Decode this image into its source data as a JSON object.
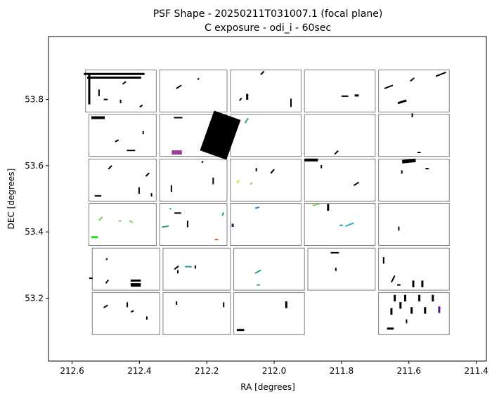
{
  "chart_data": {
    "type": "scatter",
    "title": "PSF Shape - 20250211T031007.1 (focal plane)",
    "subtitle": "C exposure - odi_i - 60sec",
    "xlabel": "RA [degrees]",
    "ylabel": "DEC [degrees]",
    "xlim": [
      212.67,
      211.37
    ],
    "ylim": [
      53.01,
      53.99
    ],
    "x_inverted": true,
    "grid": false,
    "xticks": [
      212.6,
      212.4,
      212.2,
      212.0,
      211.8,
      211.6,
      211.4
    ],
    "xtick_labels": [
      "212.6",
      "212.4",
      "212.2",
      "212.0",
      "211.8",
      "211.6",
      "211.4"
    ],
    "yticks": [
      53.2,
      53.4,
      53.6,
      53.8
    ],
    "ytick_labels": [
      "53.2",
      "53.4",
      "53.6",
      "53.8"
    ],
    "cells": [
      {
        "ra": [
          212.56,
          212.35
        ],
        "dec": [
          53.762,
          53.889
        ]
      },
      {
        "ra": [
          212.34,
          212.14
        ],
        "dec": [
          53.762,
          53.889
        ]
      },
      {
        "ra": [
          212.13,
          211.92
        ],
        "dec": [
          53.762,
          53.889
        ]
      },
      {
        "ra": [
          211.91,
          211.7
        ],
        "dec": [
          53.762,
          53.889
        ]
      },
      {
        "ra": [
          211.69,
          211.48
        ],
        "dec": [
          53.762,
          53.889
        ]
      },
      {
        "ra": [
          212.55,
          212.35
        ],
        "dec": [
          53.628,
          53.755
        ]
      },
      {
        "ra": [
          212.34,
          212.14
        ],
        "dec": [
          53.628,
          53.755
        ]
      },
      {
        "ra": [
          212.13,
          211.92
        ],
        "dec": [
          53.628,
          53.755
        ]
      },
      {
        "ra": [
          211.91,
          211.7
        ],
        "dec": [
          53.628,
          53.755
        ]
      },
      {
        "ra": [
          211.69,
          211.48
        ],
        "dec": [
          53.628,
          53.755
        ]
      },
      {
        "ra": [
          212.55,
          212.35
        ],
        "dec": [
          53.493,
          53.62
        ]
      },
      {
        "ra": [
          212.34,
          212.14
        ],
        "dec": [
          53.493,
          53.62
        ]
      },
      {
        "ra": [
          212.13,
          211.92
        ],
        "dec": [
          53.493,
          53.62
        ]
      },
      {
        "ra": [
          211.91,
          211.7
        ],
        "dec": [
          53.493,
          53.62
        ]
      },
      {
        "ra": [
          211.69,
          211.48
        ],
        "dec": [
          53.493,
          53.62
        ]
      },
      {
        "ra": [
          212.55,
          212.35
        ],
        "dec": [
          53.359,
          53.486
        ]
      },
      {
        "ra": [
          212.34,
          212.14
        ],
        "dec": [
          53.359,
          53.486
        ]
      },
      {
        "ra": [
          212.13,
          211.92
        ],
        "dec": [
          53.359,
          53.486
        ]
      },
      {
        "ra": [
          211.91,
          211.7
        ],
        "dec": [
          53.359,
          53.486
        ]
      },
      {
        "ra": [
          211.69,
          211.48
        ],
        "dec": [
          53.359,
          53.486
        ]
      },
      {
        "ra": [
          212.54,
          212.34
        ],
        "dec": [
          53.224,
          53.351
        ]
      },
      {
        "ra": [
          212.33,
          212.13
        ],
        "dec": [
          53.224,
          53.351
        ]
      },
      {
        "ra": [
          212.12,
          211.91
        ],
        "dec": [
          53.224,
          53.351
        ]
      },
      {
        "ra": [
          211.9,
          211.7
        ],
        "dec": [
          53.224,
          53.351
        ]
      },
      {
        "ra": [
          211.69,
          211.48
        ],
        "dec": [
          53.224,
          53.351
        ]
      },
      {
        "ra": [
          212.54,
          212.34
        ],
        "dec": [
          53.09,
          53.217
        ]
      },
      {
        "ra": [
          212.33,
          212.13
        ],
        "dec": [
          53.09,
          53.217
        ]
      },
      {
        "ra": [
          212.12,
          211.91
        ],
        "dec": [
          53.09,
          53.217
        ]
      },
      {
        "ra": [
          211.69,
          211.48
        ],
        "dec": [
          53.09,
          53.217
        ]
      }
    ],
    "psf_segments": [
      {
        "ra": 212.475,
        "dec": 53.877,
        "dx": 0.18,
        "dy": 0,
        "w": 3,
        "color": "#000000"
      },
      {
        "ra": 212.475,
        "dec": 53.866,
        "dx": 0.16,
        "dy": 0,
        "w": 3,
        "color": "#000000"
      },
      {
        "ra": 212.549,
        "dec": 53.83,
        "dx": 0,
        "dy": 0.09,
        "w": 3,
        "color": "#000000"
      },
      {
        "ra": 212.52,
        "dec": 53.82,
        "dx": 0,
        "dy": 0.02,
        "w": 2,
        "color": "#000000"
      },
      {
        "ra": 212.5,
        "dec": 53.8,
        "dx": 0.012,
        "dy": 0,
        "w": 2,
        "color": "#000000"
      },
      {
        "ra": 212.445,
        "dec": 53.85,
        "dx": 0.01,
        "dy": 0.008,
        "w": 2,
        "color": "#000000"
      },
      {
        "ra": 212.395,
        "dec": 53.78,
        "dx": 0.008,
        "dy": 0.006,
        "w": 2,
        "color": "#000000"
      },
      {
        "ra": 212.456,
        "dec": 53.794,
        "dx": 0,
        "dy": 0.01,
        "w": 2,
        "color": "#000000"
      },
      {
        "ra": 212.283,
        "dec": 53.838,
        "dx": 0.015,
        "dy": 0.01,
        "w": 2,
        "color": "#000000"
      },
      {
        "ra": 212.225,
        "dec": 53.862,
        "dx": 0.004,
        "dy": 0.004,
        "w": 2,
        "color": "#000000"
      },
      {
        "ra": 212.08,
        "dec": 53.808,
        "dx": 0,
        "dy": 0.018,
        "w": 3,
        "color": "#000000"
      },
      {
        "ra": 212.035,
        "dec": 53.88,
        "dx": 0.01,
        "dy": 0.01,
        "w": 2,
        "color": "#000000"
      },
      {
        "ra": 211.95,
        "dec": 53.79,
        "dx": 0,
        "dy": 0.025,
        "w": 2,
        "color": "#000000"
      },
      {
        "ra": 212.1,
        "dec": 53.8,
        "dx": 0.006,
        "dy": 0.008,
        "w": 2,
        "color": "#000000"
      },
      {
        "ra": 211.79,
        "dec": 53.81,
        "dx": 0.02,
        "dy": 0,
        "w": 2,
        "color": "#000000"
      },
      {
        "ra": 211.755,
        "dec": 53.812,
        "dx": 0.012,
        "dy": 0,
        "w": 3,
        "color": "#000000"
      },
      {
        "ra": 211.62,
        "dec": 53.793,
        "dx": 0.025,
        "dy": 0.008,
        "w": 3,
        "color": "#000000"
      },
      {
        "ra": 211.505,
        "dec": 53.876,
        "dx": 0.03,
        "dy": 0.012,
        "w": 2,
        "color": "#000000"
      },
      {
        "ra": 211.66,
        "dec": 53.838,
        "dx": 0.025,
        "dy": 0.01,
        "w": 2,
        "color": "#000000"
      },
      {
        "ra": 211.59,
        "dec": 53.86,
        "dx": 0.012,
        "dy": 0.01,
        "w": 2,
        "color": "#000000"
      },
      {
        "ra": 212.523,
        "dec": 53.745,
        "dx": 0.04,
        "dy": 0,
        "w": 4,
        "color": "#000000"
      },
      {
        "ra": 212.467,
        "dec": 53.675,
        "dx": 0.01,
        "dy": 0.005,
        "w": 2,
        "color": "#000000"
      },
      {
        "ra": 212.425,
        "dec": 53.646,
        "dx": 0.025,
        "dy": 0,
        "w": 2,
        "color": "#000000"
      },
      {
        "ra": 212.389,
        "dec": 53.7,
        "dx": 0,
        "dy": 0.01,
        "w": 2,
        "color": "#000000"
      },
      {
        "ra": 212.285,
        "dec": 53.745,
        "dx": 0.025,
        "dy": 0,
        "w": 2,
        "color": "#000000"
      },
      {
        "ra": 212.289,
        "dec": 53.64,
        "dx": 0.03,
        "dy": 0,
        "w": 6,
        "color": "#9a3d9a"
      },
      {
        "ra": 212.16,
        "dec": 53.692,
        "dx": 0.042,
        "dy": 0.12,
        "w": 40,
        "color": "#000000"
      },
      {
        "ra": 212.082,
        "dec": 53.736,
        "dx": 0.01,
        "dy": 0.015,
        "w": 2,
        "color": "#2aaa80"
      },
      {
        "ra": 211.89,
        "dec": 53.617,
        "dx": 0.04,
        "dy": 0,
        "w": 4,
        "color": "#000000"
      },
      {
        "ra": 211.815,
        "dec": 53.64,
        "dx": 0.01,
        "dy": 0.01,
        "w": 2,
        "color": "#000000"
      },
      {
        "ra": 211.6,
        "dec": 53.614,
        "dx": 0.04,
        "dy": 0.004,
        "w": 5,
        "color": "#000000"
      },
      {
        "ra": 211.59,
        "dec": 53.752,
        "dx": 0,
        "dy": 0.012,
        "w": 2,
        "color": "#000000"
      },
      {
        "ra": 211.57,
        "dec": 53.64,
        "dx": 0.01,
        "dy": 0,
        "w": 2,
        "color": "#000000"
      },
      {
        "ra": 212.523,
        "dec": 53.509,
        "dx": 0.02,
        "dy": 0,
        "w": 2,
        "color": "#000000"
      },
      {
        "ra": 212.487,
        "dec": 53.595,
        "dx": 0.01,
        "dy": 0.01,
        "w": 2,
        "color": "#000000"
      },
      {
        "ra": 212.376,
        "dec": 53.573,
        "dx": 0.01,
        "dy": 0.01,
        "w": 2,
        "color": "#000000"
      },
      {
        "ra": 212.401,
        "dec": 53.525,
        "dx": 0,
        "dy": 0.02,
        "w": 2,
        "color": "#000000"
      },
      {
        "ra": 212.364,
        "dec": 53.512,
        "dx": 0,
        "dy": 0.01,
        "w": 2,
        "color": "#000000"
      },
      {
        "ra": 212.305,
        "dec": 53.531,
        "dx": 0,
        "dy": 0.02,
        "w": 2,
        "color": "#000000"
      },
      {
        "ra": 212.181,
        "dec": 53.554,
        "dx": 0,
        "dy": 0.02,
        "w": 2,
        "color": "#000000"
      },
      {
        "ra": 212.213,
        "dec": 53.611,
        "dx": 0.004,
        "dy": 0.004,
        "w": 2,
        "color": "#000000"
      },
      {
        "ra": 212.107,
        "dec": 53.552,
        "dx": 0.005,
        "dy": 0.01,
        "w": 2,
        "color": "#c8e020"
      },
      {
        "ra": 212.068,
        "dec": 53.546,
        "dx": 0.003,
        "dy": 0.006,
        "w": 2,
        "color": "#7ad151"
      },
      {
        "ra": 212.005,
        "dec": 53.583,
        "dx": 0.01,
        "dy": 0.012,
        "w": 2,
        "color": "#000000"
      },
      {
        "ra": 212.053,
        "dec": 53.588,
        "dx": 0,
        "dy": 0.01,
        "w": 2,
        "color": "#000000"
      },
      {
        "ra": 211.86,
        "dec": 53.597,
        "dx": 0,
        "dy": 0.01,
        "w": 2,
        "color": "#000000"
      },
      {
        "ra": 211.756,
        "dec": 53.545,
        "dx": 0.015,
        "dy": 0.01,
        "w": 2,
        "color": "#000000"
      },
      {
        "ra": 211.621,
        "dec": 53.581,
        "dx": 0,
        "dy": 0.01,
        "w": 2,
        "color": "#000000"
      },
      {
        "ra": 211.546,
        "dec": 53.591,
        "dx": 0.01,
        "dy": 0,
        "w": 2,
        "color": "#000000"
      },
      {
        "ra": 212.515,
        "dec": 53.44,
        "dx": 0.01,
        "dy": 0.01,
        "w": 2,
        "color": "#7ad151"
      },
      {
        "ra": 212.458,
        "dec": 53.433,
        "dx": 0.008,
        "dy": 0,
        "w": 2,
        "color": "#7ad151"
      },
      {
        "ra": 212.425,
        "dec": 53.431,
        "dx": 0.01,
        "dy": -0.005,
        "w": 2,
        "color": "#7ad151"
      },
      {
        "ra": 212.533,
        "dec": 53.384,
        "dx": 0.02,
        "dy": 0,
        "w": 3,
        "color": "#22dd22"
      },
      {
        "ra": 212.286,
        "dec": 53.457,
        "dx": 0.02,
        "dy": 0,
        "w": 2,
        "color": "#000000"
      },
      {
        "ra": 212.323,
        "dec": 53.416,
        "dx": 0.02,
        "dy": 0.004,
        "w": 2,
        "color": "#2a9a8a"
      },
      {
        "ra": 212.308,
        "dec": 53.47,
        "dx": 0.004,
        "dy": 0.004,
        "w": 2,
        "color": "#2ab0a0"
      },
      {
        "ra": 212.257,
        "dec": 53.424,
        "dx": 0,
        "dy": 0.02,
        "w": 2,
        "color": "#000000"
      },
      {
        "ra": 212.152,
        "dec": 53.454,
        "dx": 0.004,
        "dy": 0.01,
        "w": 2,
        "color": "#1f9a8a"
      },
      {
        "ra": 212.171,
        "dec": 53.377,
        "dx": 0.01,
        "dy": 0,
        "w": 2,
        "color": "#d46a3a"
      },
      {
        "ra": 212.123,
        "dec": 53.42,
        "dx": 0,
        "dy": 0.01,
        "w": 3,
        "color": "#3b1c6b"
      },
      {
        "ra": 212.05,
        "dec": 53.473,
        "dx": 0.012,
        "dy": 0.003,
        "w": 2,
        "color": "#2a8aa0"
      },
      {
        "ra": 211.876,
        "dec": 53.482,
        "dx": 0.02,
        "dy": 0.004,
        "w": 2,
        "color": "#7ad151"
      },
      {
        "ra": 211.84,
        "dec": 53.474,
        "dx": 0,
        "dy": 0.02,
        "w": 3,
        "color": "#000000"
      },
      {
        "ra": 211.776,
        "dec": 53.422,
        "dx": 0.025,
        "dy": 0.01,
        "w": 2,
        "color": "#2ab0c0"
      },
      {
        "ra": 211.801,
        "dec": 53.42,
        "dx": 0.01,
        "dy": 0,
        "w": 2,
        "color": "#2a9aa0"
      },
      {
        "ra": 211.63,
        "dec": 53.41,
        "dx": 0,
        "dy": 0.012,
        "w": 2,
        "color": "#000000"
      },
      {
        "ra": 212.544,
        "dec": 53.26,
        "dx": 0.01,
        "dy": 0,
        "w": 2,
        "color": "#000000"
      },
      {
        "ra": 212.497,
        "dec": 53.318,
        "dx": 0.004,
        "dy": 0.004,
        "w": 2,
        "color": "#000000"
      },
      {
        "ra": 212.496,
        "dec": 53.25,
        "dx": 0.008,
        "dy": 0.01,
        "w": 2,
        "color": "#000000"
      },
      {
        "ra": 212.411,
        "dec": 53.253,
        "dx": 0.03,
        "dy": 0,
        "w": 3,
        "color": "#000000"
      },
      {
        "ra": 212.411,
        "dec": 53.24,
        "dx": 0.03,
        "dy": 0,
        "w": 5,
        "color": "#000000"
      },
      {
        "ra": 212.29,
        "dec": 53.292,
        "dx": 0.012,
        "dy": 0.01,
        "w": 2,
        "color": "#000000"
      },
      {
        "ra": 212.286,
        "dec": 53.28,
        "dx": 0,
        "dy": 0.01,
        "w": 2,
        "color": "#000000"
      },
      {
        "ra": 212.255,
        "dec": 53.295,
        "dx": 0.02,
        "dy": 0,
        "w": 2,
        "color": "#2a9aa0"
      },
      {
        "ra": 212.234,
        "dec": 53.294,
        "dx": 0,
        "dy": 0.01,
        "w": 2,
        "color": "#000000"
      },
      {
        "ra": 212.048,
        "dec": 53.28,
        "dx": 0.018,
        "dy": 0.01,
        "w": 2,
        "color": "#2a9aa0"
      },
      {
        "ra": 212.047,
        "dec": 53.24,
        "dx": 0.01,
        "dy": 0,
        "w": 2,
        "color": "#2ab0a0"
      },
      {
        "ra": 211.82,
        "dec": 53.337,
        "dx": 0.025,
        "dy": 0,
        "w": 2,
        "color": "#000000"
      },
      {
        "ra": 211.817,
        "dec": 53.287,
        "dx": 0,
        "dy": 0.01,
        "w": 2,
        "color": "#000000"
      },
      {
        "ra": 211.675,
        "dec": 53.314,
        "dx": 0,
        "dy": 0.02,
        "w": 2,
        "color": "#000000"
      },
      {
        "ra": 211.647,
        "dec": 53.258,
        "dx": 0.01,
        "dy": 0.02,
        "w": 2,
        "color": "#000000"
      },
      {
        "ra": 211.587,
        "dec": 53.243,
        "dx": 0,
        "dy": 0.02,
        "w": 3,
        "color": "#000000"
      },
      {
        "ra": 211.56,
        "dec": 53.243,
        "dx": 0,
        "dy": 0.02,
        "w": 3,
        "color": "#000000"
      },
      {
        "ra": 211.63,
        "dec": 53.24,
        "dx": 0.01,
        "dy": 0,
        "w": 2,
        "color": "#000000"
      },
      {
        "ra": 212.5,
        "dec": 53.175,
        "dx": 0.012,
        "dy": 0.008,
        "w": 2,
        "color": "#000000"
      },
      {
        "ra": 212.436,
        "dec": 53.18,
        "dx": 0,
        "dy": 0.015,
        "w": 2,
        "color": "#000000"
      },
      {
        "ra": 212.421,
        "dec": 53.16,
        "dx": 0.008,
        "dy": 0.004,
        "w": 2,
        "color": "#000000"
      },
      {
        "ra": 212.378,
        "dec": 53.14,
        "dx": 0,
        "dy": 0.01,
        "w": 2,
        "color": "#000000"
      },
      {
        "ra": 212.29,
        "dec": 53.185,
        "dx": 0,
        "dy": 0.01,
        "w": 2,
        "color": "#000000"
      },
      {
        "ra": 212.15,
        "dec": 53.18,
        "dx": 0,
        "dy": 0.015,
        "w": 2,
        "color": "#000000"
      },
      {
        "ra": 212.1,
        "dec": 53.104,
        "dx": 0.022,
        "dy": 0,
        "w": 3,
        "color": "#000000"
      },
      {
        "ra": 211.964,
        "dec": 53.18,
        "dx": 0,
        "dy": 0.02,
        "w": 3,
        "color": "#000000"
      },
      {
        "ra": 211.655,
        "dec": 53.108,
        "dx": 0.02,
        "dy": 0,
        "w": 3,
        "color": "#000000"
      },
      {
        "ra": 211.625,
        "dec": 53.178,
        "dx": 0,
        "dy": 0.02,
        "w": 3,
        "color": "#000000"
      },
      {
        "ra": 211.652,
        "dec": 53.16,
        "dx": 0,
        "dy": 0.02,
        "w": 3,
        "color": "#000000"
      },
      {
        "ra": 211.592,
        "dec": 53.163,
        "dx": 0,
        "dy": 0.02,
        "w": 3,
        "color": "#000000"
      },
      {
        "ra": 211.552,
        "dec": 53.163,
        "dx": 0,
        "dy": 0.02,
        "w": 3,
        "color": "#000000"
      },
      {
        "ra": 211.529,
        "dec": 53.2,
        "dx": 0,
        "dy": 0.02,
        "w": 3,
        "color": "#000000"
      },
      {
        "ra": 211.569,
        "dec": 53.2,
        "dx": 0,
        "dy": 0.02,
        "w": 3,
        "color": "#000000"
      },
      {
        "ra": 211.611,
        "dec": 53.2,
        "dx": 0,
        "dy": 0.02,
        "w": 3,
        "color": "#000000"
      },
      {
        "ra": 211.642,
        "dec": 53.2,
        "dx": 0,
        "dy": 0.02,
        "w": 3,
        "color": "#000000"
      },
      {
        "ra": 211.607,
        "dec": 53.13,
        "dx": 0,
        "dy": 0.012,
        "w": 2,
        "color": "#000000"
      },
      {
        "ra": 211.51,
        "dec": 53.165,
        "dx": 0,
        "dy": 0.02,
        "w": 3,
        "color": "#5a1a7a"
      }
    ]
  }
}
